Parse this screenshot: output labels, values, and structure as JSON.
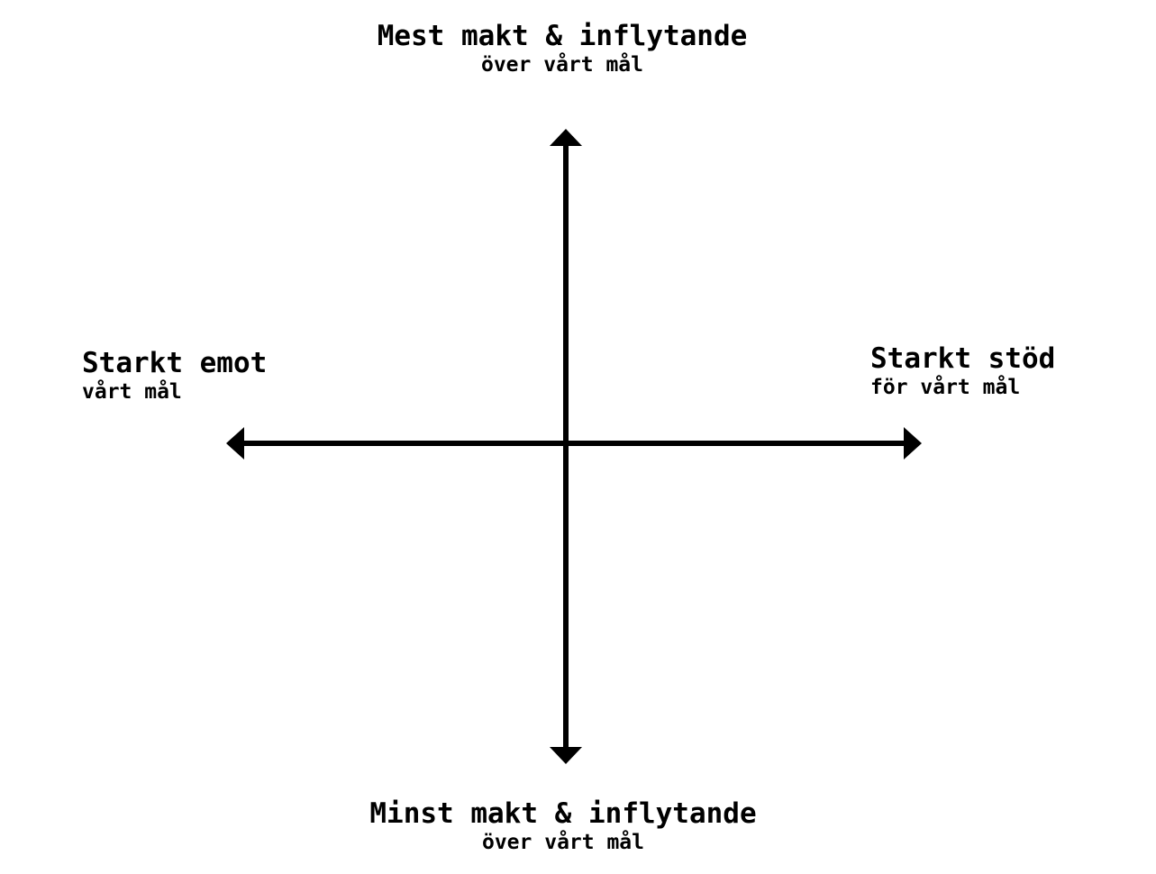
{
  "top": {
    "main": "Mest makt & inflytande",
    "sub": "över vårt mål"
  },
  "bottom": {
    "main": "Minst makt & inflytande",
    "sub": "över vårt mål"
  },
  "left": {
    "main": "Starkt emot",
    "sub": "vårt mål"
  },
  "right": {
    "main": "Starkt stöd",
    "sub": "för vårt mål"
  },
  "colors": {
    "axis": "#000000",
    "background": "#ffffff"
  }
}
